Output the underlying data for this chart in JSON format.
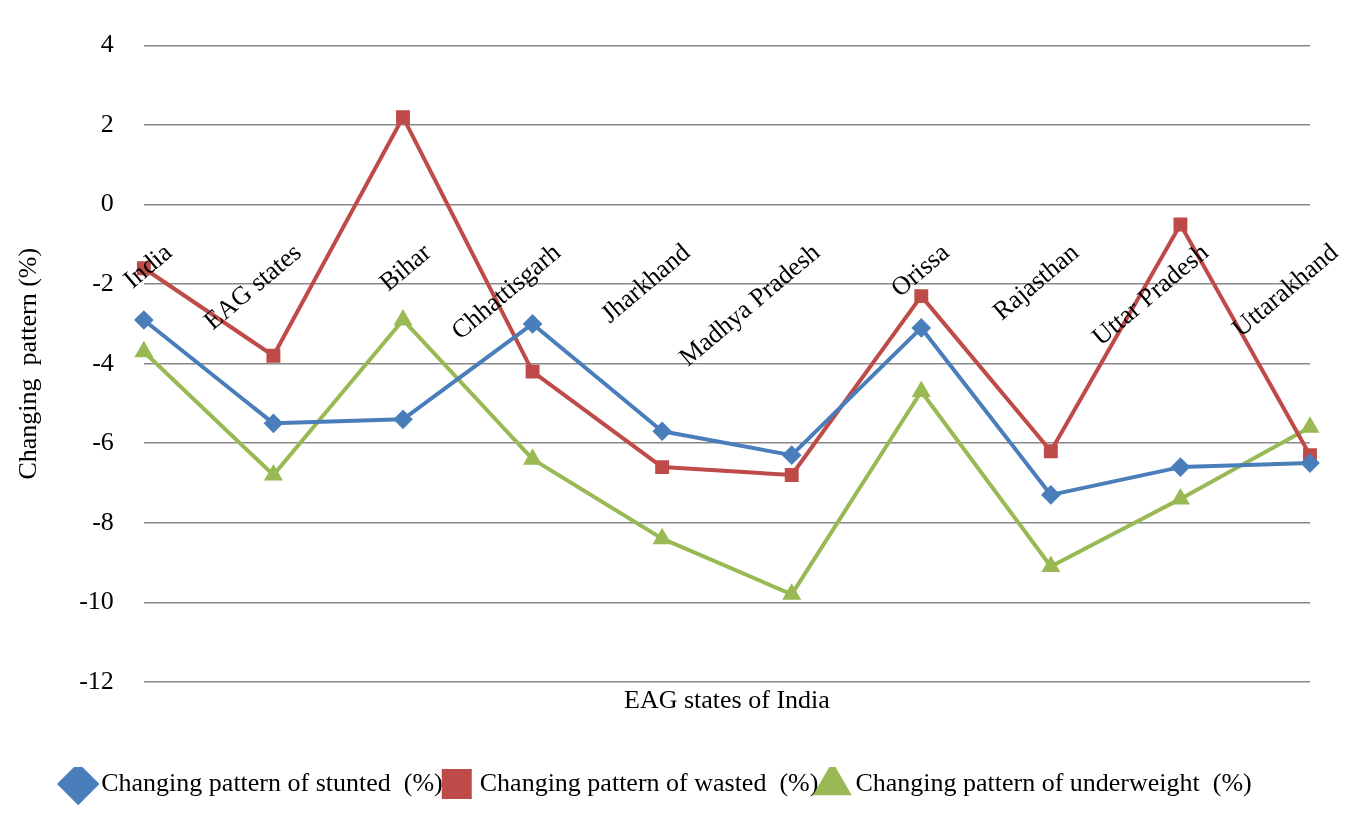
{
  "chart_data": {
    "type": "line",
    "xlabel": "EAG states of India",
    "ylabel": "Changing  pattern (%)",
    "categories": [
      "India",
      "EAG states",
      "Bihar",
      "Chhattisgarh",
      "Jharkhand",
      "Madhya Pradesh",
      "Orissa",
      "Rajasthan",
      "Uttar Pradesh",
      "Uttarakhand"
    ],
    "series": [
      {
        "name": "Changing pattern of stunted  (%)",
        "color": "#4a7ebb",
        "marker": "diamond",
        "values": [
          -2.9,
          -5.5,
          -5.4,
          -3.0,
          -5.7,
          -6.3,
          -3.1,
          -7.3,
          -6.6,
          -6.5
        ]
      },
      {
        "name": "Changing pattern of wasted  (%)",
        "color": "#be4b48",
        "marker": "square",
        "values": [
          -1.6,
          -3.8,
          2.2,
          -4.2,
          -6.6,
          -6.8,
          -2.3,
          -6.2,
          -0.5,
          -6.3
        ]
      },
      {
        "name": "Changing pattern of underweight  (%)",
        "color": "#98b954",
        "marker": "triangle",
        "values": [
          -3.7,
          -6.8,
          -2.9,
          -6.4,
          -8.4,
          -9.8,
          -4.7,
          -9.1,
          -7.4,
          -5.6
        ]
      }
    ],
    "ylim": [
      -12,
      4
    ],
    "yticks": [
      -12,
      -10,
      -8,
      -6,
      -4,
      -2,
      0,
      2,
      4
    ],
    "grid": "y",
    "legend": "bottom"
  }
}
